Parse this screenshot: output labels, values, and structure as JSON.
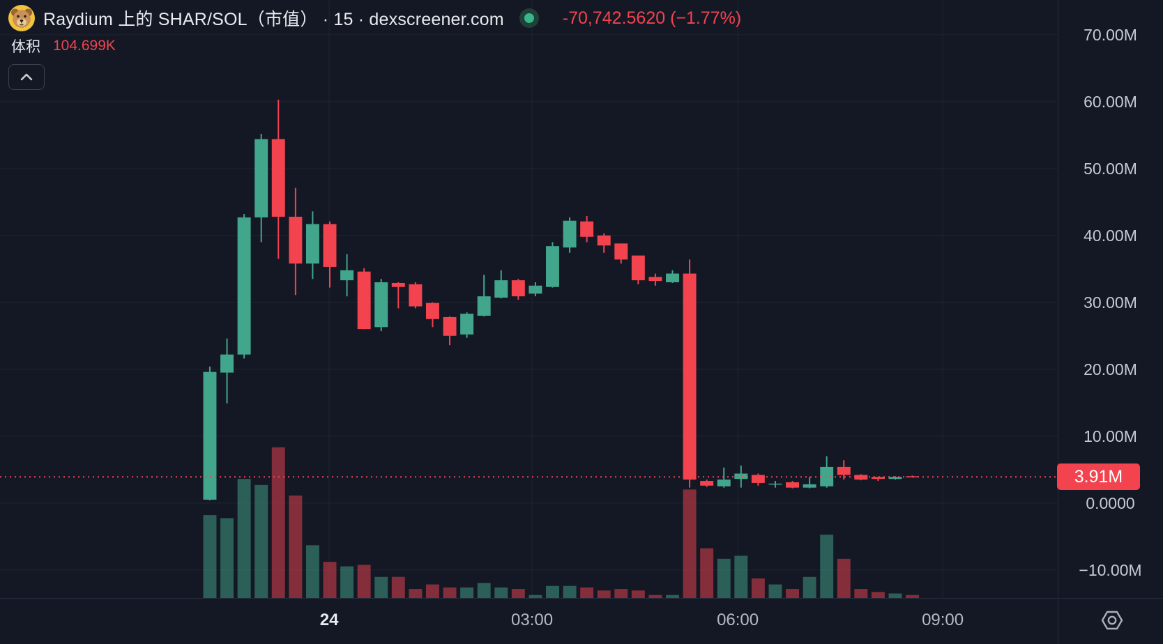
{
  "header": {
    "title": "Raydium 上的 SHAR/SOL（市值） · 15 · dexscreener.com",
    "change": "-70,742.5620 (−1.77%)",
    "volume_label": "体积",
    "volume_value": "104.699K"
  },
  "icons": {
    "logo": "shar-token-logo",
    "status": "market-status-dot",
    "collapse": "chevron-up-icon",
    "scale_menu": "hexagon-settings-icon"
  },
  "colors": {
    "background": "#141824",
    "up": "#42a68c",
    "down": "#f2434f",
    "grid": "rgba(255,255,255,0.055)",
    "price_text": "#c6cad4",
    "time_text": "#b4b9c4",
    "badge_bg": "#f2434f",
    "badge_text": "#ffffff"
  },
  "chart_data": {
    "type": "candlestick",
    "exchange": "Raydium",
    "pair": "SHAR/SOL",
    "measure": "市值 (market cap)",
    "interval": "15",
    "source": "dexscreener.com",
    "unit": "M = millions",
    "current_price": {
      "label": "3.91M",
      "value": 3.91,
      "direction": "down"
    },
    "y_axis": {
      "top_value": 75.2,
      "bottom_value": -14.2,
      "ticks": [
        {
          "label": "70.00M",
          "value": 70
        },
        {
          "label": "60.00M",
          "value": 60
        },
        {
          "label": "50.00M",
          "value": 50
        },
        {
          "label": "40.00M",
          "value": 40
        },
        {
          "label": "30.00M",
          "value": 30
        },
        {
          "label": "20.00M",
          "value": 20
        },
        {
          "label": "10.00M",
          "value": 10
        },
        {
          "label": "0.0000",
          "value": 0
        },
        {
          "label": "−10.00M",
          "value": -10
        }
      ]
    },
    "x_axis": {
      "ticks": [
        {
          "label": "24",
          "pos": 0.3112,
          "bold": true
        },
        {
          "label": "03:00",
          "pos": 0.503,
          "bold": false
        },
        {
          "label": "06:00",
          "pos": 0.6975,
          "bold": false
        },
        {
          "label": "09:00",
          "pos": 0.8913,
          "bold": false
        }
      ]
    },
    "layout": {
      "grid": true,
      "legend_position": "top-left",
      "first_center_frac": 0.1984,
      "spacing_frac": 0.0162,
      "body_width_frac": 0.0125,
      "volume_max_frac": 0.252,
      "volume_opacity": 0.5
    },
    "candles_ohlc": [
      [
        0.5,
        20.4,
        0.4,
        19.6
      ],
      [
        19.5,
        24.6,
        14.9,
        22.2
      ],
      [
        22.2,
        43.2,
        21.6,
        42.7
      ],
      [
        42.7,
        55.2,
        39.0,
        54.4
      ],
      [
        54.4,
        60.3,
        36.5,
        42.8
      ],
      [
        42.8,
        47.1,
        31.1,
        35.8
      ],
      [
        35.8,
        43.6,
        33.5,
        41.7
      ],
      [
        41.7,
        42.1,
        32.2,
        35.3
      ],
      [
        33.3,
        37.2,
        30.9,
        34.8
      ],
      [
        34.6,
        35.1,
        26.0,
        26.0
      ],
      [
        26.3,
        33.5,
        25.7,
        33.0
      ],
      [
        32.9,
        33.0,
        29.1,
        32.3
      ],
      [
        32.7,
        33.0,
        29.1,
        29.4
      ],
      [
        29.9,
        30.0,
        26.3,
        27.5
      ],
      [
        27.8,
        27.9,
        23.6,
        25.0
      ],
      [
        25.2,
        28.5,
        24.7,
        28.3
      ],
      [
        28.0,
        34.1,
        27.9,
        30.9
      ],
      [
        30.7,
        34.8,
        30.6,
        33.3
      ],
      [
        33.3,
        33.5,
        30.4,
        30.9
      ],
      [
        31.3,
        33.0,
        30.9,
        32.5
      ],
      [
        32.3,
        39.0,
        32.2,
        38.4
      ],
      [
        38.2,
        42.7,
        37.4,
        42.2
      ],
      [
        42.1,
        42.9,
        39.0,
        39.8
      ],
      [
        40.0,
        40.3,
        37.4,
        38.5
      ],
      [
        38.8,
        38.8,
        35.8,
        36.4
      ],
      [
        37.0,
        37.0,
        32.7,
        33.3
      ],
      [
        33.8,
        34.3,
        32.5,
        33.2
      ],
      [
        33.0,
        34.8,
        32.9,
        34.3
      ],
      [
        34.3,
        36.4,
        2.3,
        3.5
      ],
      [
        3.3,
        3.5,
        2.4,
        2.6
      ],
      [
        2.5,
        5.3,
        2.3,
        3.5
      ],
      [
        3.6,
        5.6,
        2.3,
        4.4
      ],
      [
        4.2,
        4.4,
        2.6,
        3.0
      ],
      [
        2.9,
        3.3,
        2.3,
        2.9
      ],
      [
        3.1,
        3.3,
        2.2,
        2.3
      ],
      [
        2.3,
        3.9,
        2.2,
        2.8
      ],
      [
        2.5,
        7.0,
        2.3,
        5.4
      ],
      [
        5.4,
        6.4,
        3.5,
        4.2
      ],
      [
        4.2,
        4.3,
        3.4,
        3.5
      ],
      [
        3.9,
        3.9,
        3.3,
        3.6
      ],
      [
        3.6,
        4.0,
        3.5,
        3.9
      ],
      [
        4.0,
        4.1,
        3.8,
        3.91
      ]
    ],
    "volume_rel": [
      0.55,
      0.53,
      0.79,
      0.75,
      1.0,
      0.68,
      0.35,
      0.24,
      0.21,
      0.22,
      0.14,
      0.14,
      0.06,
      0.09,
      0.07,
      0.07,
      0.1,
      0.07,
      0.06,
      0.02,
      0.08,
      0.08,
      0.07,
      0.05,
      0.06,
      0.05,
      0.02,
      0.02,
      0.72,
      0.33,
      0.26,
      0.28,
      0.13,
      0.09,
      0.06,
      0.14,
      0.42,
      0.26,
      0.06,
      0.04,
      0.03,
      0.02
    ]
  }
}
